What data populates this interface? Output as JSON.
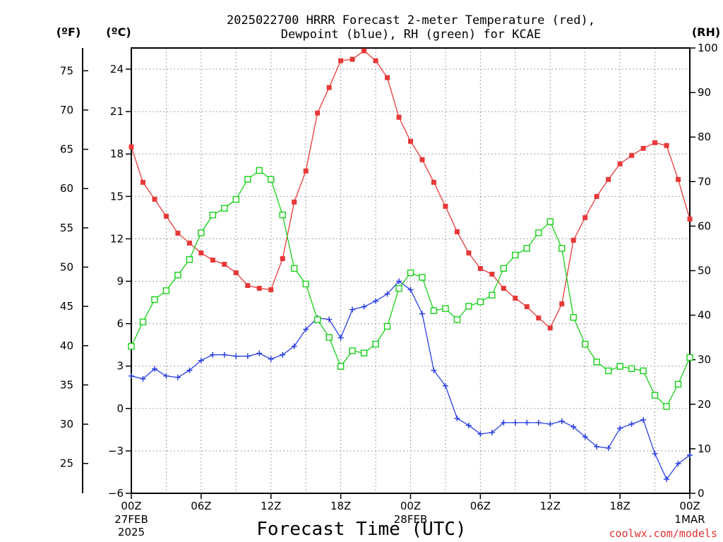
{
  "title_line1": "2025022700 HRRR Forecast 2-meter Temperature (red),",
  "title_line2": "Dewpoint (blue), RH (green) for KCAE",
  "credit": "coolwx.com/models",
  "colors": {
    "temperature": "#e83838",
    "dewpoint": "#2a40e0",
    "rh": "#18d018"
  },
  "chart_data": {
    "type": "line",
    "xlabel": "Forecast Time (UTC)",
    "x_hours": [
      0,
      1,
      2,
      3,
      4,
      5,
      6,
      7,
      8,
      9,
      10,
      11,
      12,
      13,
      14,
      15,
      16,
      17,
      18,
      19,
      20,
      21,
      22,
      23,
      24,
      25,
      26,
      27,
      28,
      29,
      30,
      31,
      32,
      33,
      34,
      35,
      36,
      37,
      38,
      39,
      40,
      41,
      42,
      43,
      44,
      45,
      46,
      47,
      48
    ],
    "x_tick_hours": [
      0,
      6,
      12,
      18,
      24,
      30,
      36,
      42,
      48
    ],
    "x_tick_labels": [
      {
        "time": "00Z",
        "date": "27FEB",
        "year": "2025"
      },
      {
        "time": "06Z",
        "date": "",
        "year": ""
      },
      {
        "time": "12Z",
        "date": "",
        "year": ""
      },
      {
        "time": "18Z",
        "date": "",
        "year": ""
      },
      {
        "time": "00Z",
        "date": "28FEB",
        "year": ""
      },
      {
        "time": "06Z",
        "date": "",
        "year": ""
      },
      {
        "time": "12Z",
        "date": "",
        "year": ""
      },
      {
        "time": "18Z",
        "date": "",
        "year": ""
      },
      {
        "time": "00Z",
        "date": "1MAR",
        "year": ""
      }
    ],
    "y_celsius": {
      "label": "(ºC)",
      "ylim": [
        -6,
        25.5
      ],
      "ticks": [
        -6,
        -3,
        0,
        3,
        6,
        9,
        12,
        15,
        18,
        21,
        24
      ]
    },
    "y_fahrenheit": {
      "label": "(ºF)",
      "ticks": [
        25,
        30,
        35,
        40,
        45,
        50,
        55,
        60,
        65,
        70,
        75
      ]
    },
    "y_rh": {
      "label": "(RH)",
      "ylim": [
        0,
        100
      ],
      "ticks": [
        0,
        10,
        20,
        30,
        40,
        50,
        60,
        70,
        80,
        90,
        100
      ]
    },
    "grid": true,
    "series": [
      {
        "key": "temperature",
        "unit": "C",
        "values": [
          18.5,
          16.0,
          14.8,
          13.6,
          12.4,
          11.7,
          11.0,
          10.5,
          10.2,
          9.6,
          8.7,
          8.5,
          8.4,
          10.6,
          14.6,
          16.8,
          20.9,
          22.7,
          24.6,
          24.7,
          25.3,
          24.6,
          23.4,
          20.6,
          18.9,
          17.6,
          16.0,
          14.3,
          12.5,
          11.0,
          9.9,
          9.5,
          8.5,
          7.8,
          7.2,
          6.4,
          5.7,
          7.4,
          11.9,
          13.5,
          15.0,
          16.2,
          17.3,
          17.9,
          18.4,
          18.8,
          18.6,
          16.2,
          13.4
        ]
      },
      {
        "key": "dewpoint",
        "unit": "C",
        "values": [
          2.3,
          2.1,
          2.8,
          2.3,
          2.2,
          2.7,
          3.4,
          3.8,
          3.8,
          3.7,
          3.7,
          3.9,
          3.5,
          3.8,
          4.4,
          5.6,
          6.4,
          6.3,
          5.0,
          7.0,
          7.2,
          7.6,
          8.1,
          9.0,
          8.4,
          6.7,
          2.7,
          1.6,
          -0.7,
          -1.2,
          -1.8,
          -1.7,
          -1.0,
          -1.0,
          -1.0,
          -1.0,
          -1.1,
          -0.9,
          -1.3,
          -2.0,
          -2.7,
          -2.8,
          -1.4,
          -1.1,
          -0.8,
          -3.2,
          -5.0,
          -3.9,
          -3.3
        ]
      },
      {
        "key": "rh",
        "unit": "%",
        "values": [
          33,
          38.5,
          43.5,
          45.5,
          49,
          52.5,
          58.5,
          62.5,
          64,
          66,
          70.5,
          72.5,
          70.5,
          62.5,
          50.5,
          47,
          39,
          35,
          28.5,
          32,
          31.5,
          33.5,
          37.5,
          46,
          49.5,
          48.5,
          41,
          41.5,
          39,
          42,
          43,
          44.5,
          50.5,
          53.5,
          55,
          58.5,
          61,
          55,
          39.5,
          33.5,
          29.5,
          27.5,
          28.5,
          28,
          27.5,
          22,
          19.5,
          24.5,
          30.5
        ]
      }
    ]
  }
}
